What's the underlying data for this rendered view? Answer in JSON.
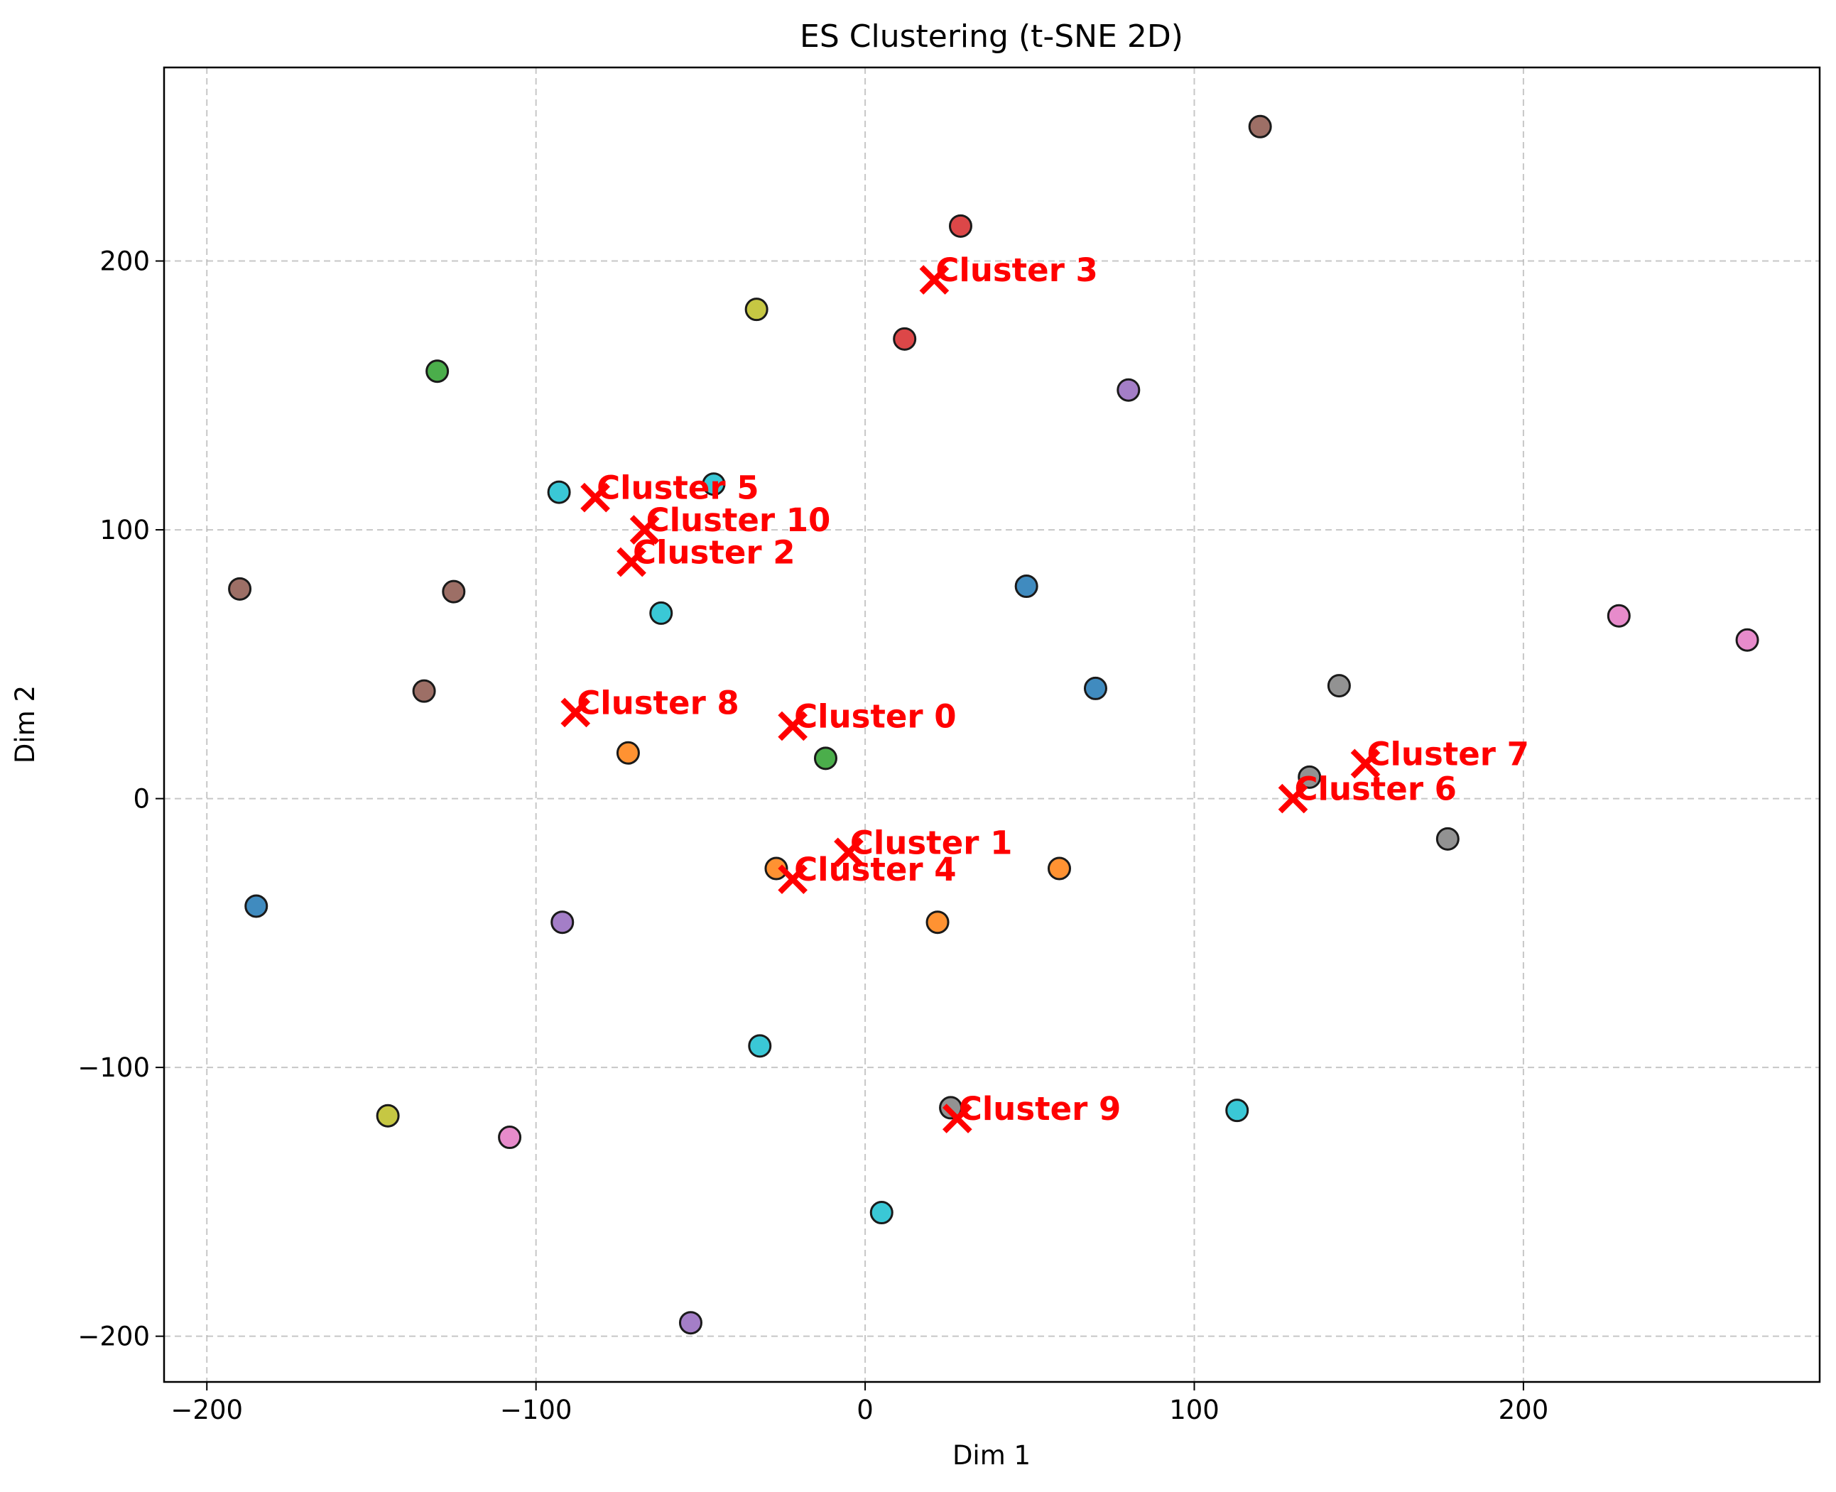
{
  "chart_data": {
    "type": "scatter",
    "title": "ES Clustering (t-SNE 2D)",
    "xlabel": "Dim 1",
    "ylabel": "Dim 2",
    "xlim": [
      -213,
      290
    ],
    "ylim": [
      -217,
      272
    ],
    "xticks": [
      -200,
      -100,
      0,
      100,
      200
    ],
    "yticks": [
      -200,
      -100,
      0,
      100,
      200
    ],
    "xtick_labels": [
      "−200",
      "−100",
      "0",
      "100",
      "200"
    ],
    "ytick_labels": [
      "−200",
      "−100",
      "0",
      "100",
      "200"
    ],
    "grid": true,
    "centroid_color": "#ff0000",
    "points": [
      {
        "x": -185,
        "y": -40,
        "color": "#1f77b4"
      },
      {
        "x": 49,
        "y": 79,
        "color": "#1f77b4"
      },
      {
        "x": 70,
        "y": 41,
        "color": "#1f77b4"
      },
      {
        "x": -72,
        "y": 17,
        "color": "#ff7f0e"
      },
      {
        "x": -27,
        "y": -26,
        "color": "#ff7f0e"
      },
      {
        "x": 59,
        "y": -26,
        "color": "#ff7f0e"
      },
      {
        "x": 22,
        "y": -46,
        "color": "#ff7f0e"
      },
      {
        "x": -130,
        "y": 159,
        "color": "#2ca02c"
      },
      {
        "x": -12,
        "y": 15,
        "color": "#2ca02c"
      },
      {
        "x": 29,
        "y": 213,
        "color": "#d62728"
      },
      {
        "x": 12,
        "y": 171,
        "color": "#d62728"
      },
      {
        "x": 80,
        "y": 152,
        "color": "#9467bd"
      },
      {
        "x": -92,
        "y": -46,
        "color": "#9467bd"
      },
      {
        "x": -53,
        "y": -195,
        "color": "#9467bd"
      },
      {
        "x": 120,
        "y": 250,
        "color": "#8c564b"
      },
      {
        "x": -190,
        "y": 78,
        "color": "#8c564b"
      },
      {
        "x": -125,
        "y": 77,
        "color": "#8c564b"
      },
      {
        "x": -134,
        "y": 40,
        "color": "#8c564b"
      },
      {
        "x": 229,
        "y": 68,
        "color": "#e377c2"
      },
      {
        "x": 268,
        "y": 59,
        "color": "#e377c2"
      },
      {
        "x": -108,
        "y": -126,
        "color": "#e377c2"
      },
      {
        "x": 144,
        "y": 42,
        "color": "#7f7f7f"
      },
      {
        "x": 135,
        "y": 8,
        "color": "#7f7f7f"
      },
      {
        "x": 177,
        "y": -15,
        "color": "#7f7f7f"
      },
      {
        "x": 26,
        "y": -115,
        "color": "#7f7f7f"
      },
      {
        "x": -33,
        "y": 182,
        "color": "#bcbd22"
      },
      {
        "x": -145,
        "y": -118,
        "color": "#bcbd22"
      },
      {
        "x": -93,
        "y": 114,
        "color": "#17becf"
      },
      {
        "x": -46,
        "y": 117,
        "color": "#17becf"
      },
      {
        "x": -62,
        "y": 69,
        "color": "#17becf"
      },
      {
        "x": -32,
        "y": -92,
        "color": "#17becf"
      },
      {
        "x": 113,
        "y": -116,
        "color": "#17becf"
      },
      {
        "x": 5,
        "y": -154,
        "color": "#17becf"
      }
    ],
    "centroids": [
      {
        "label": "Cluster 0",
        "x": -22,
        "y": 27
      },
      {
        "label": "Cluster 1",
        "x": -5,
        "y": -20
      },
      {
        "label": "Cluster 2",
        "x": -71,
        "y": 88
      },
      {
        "label": "Cluster 3",
        "x": 21,
        "y": 193
      },
      {
        "label": "Cluster 4",
        "x": -22,
        "y": -30
      },
      {
        "label": "Cluster 5",
        "x": -82,
        "y": 112
      },
      {
        "label": "Cluster 6",
        "x": 130,
        "y": 0
      },
      {
        "label": "Cluster 7",
        "x": 152,
        "y": 13
      },
      {
        "label": "Cluster 8",
        "x": -88,
        "y": 32
      },
      {
        "label": "Cluster 9",
        "x": 28,
        "y": -119
      },
      {
        "label": "Cluster 10",
        "x": -67,
        "y": 100
      }
    ]
  }
}
